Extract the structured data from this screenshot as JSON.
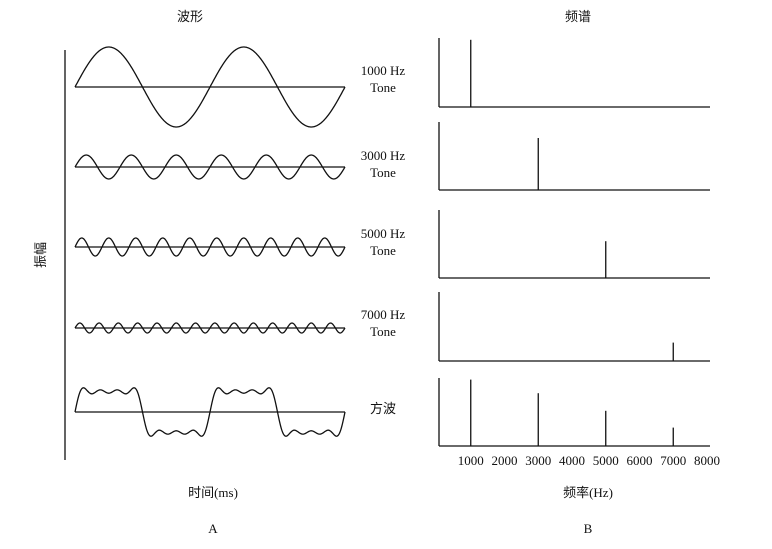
{
  "left": {
    "title": "波形",
    "y_label": "振幅",
    "x_label": "时间(ms)",
    "panel_label": "A"
  },
  "chart_data": {
    "type": "spectrum",
    "title": "频谱",
    "x_label": "频率(Hz)",
    "panel_label": "B",
    "xlim": [
      0,
      8000
    ],
    "xticks": [
      1000,
      2000,
      3000,
      4000,
      5000,
      6000,
      7000,
      8000
    ],
    "rows": [
      {
        "label": [
          "1000 Hz",
          "Tone"
        ],
        "x": [
          1000
        ],
        "values": [
          0.84
        ]
      },
      {
        "label": [
          "3000 Hz",
          "Tone"
        ],
        "x": [
          3000
        ],
        "values": [
          0.65
        ]
      },
      {
        "label": [
          "5000 Hz",
          "Tone"
        ],
        "x": [
          5000
        ],
        "values": [
          0.46
        ]
      },
      {
        "label": [
          "7000 Hz",
          "Tone"
        ],
        "x": [
          7000
        ],
        "values": [
          0.23
        ]
      },
      {
        "label": [
          "方波"
        ],
        "x": [
          1000,
          3000,
          5000,
          7000
        ],
        "values": [
          0.83,
          0.66,
          0.44,
          0.23
        ]
      }
    ]
  }
}
